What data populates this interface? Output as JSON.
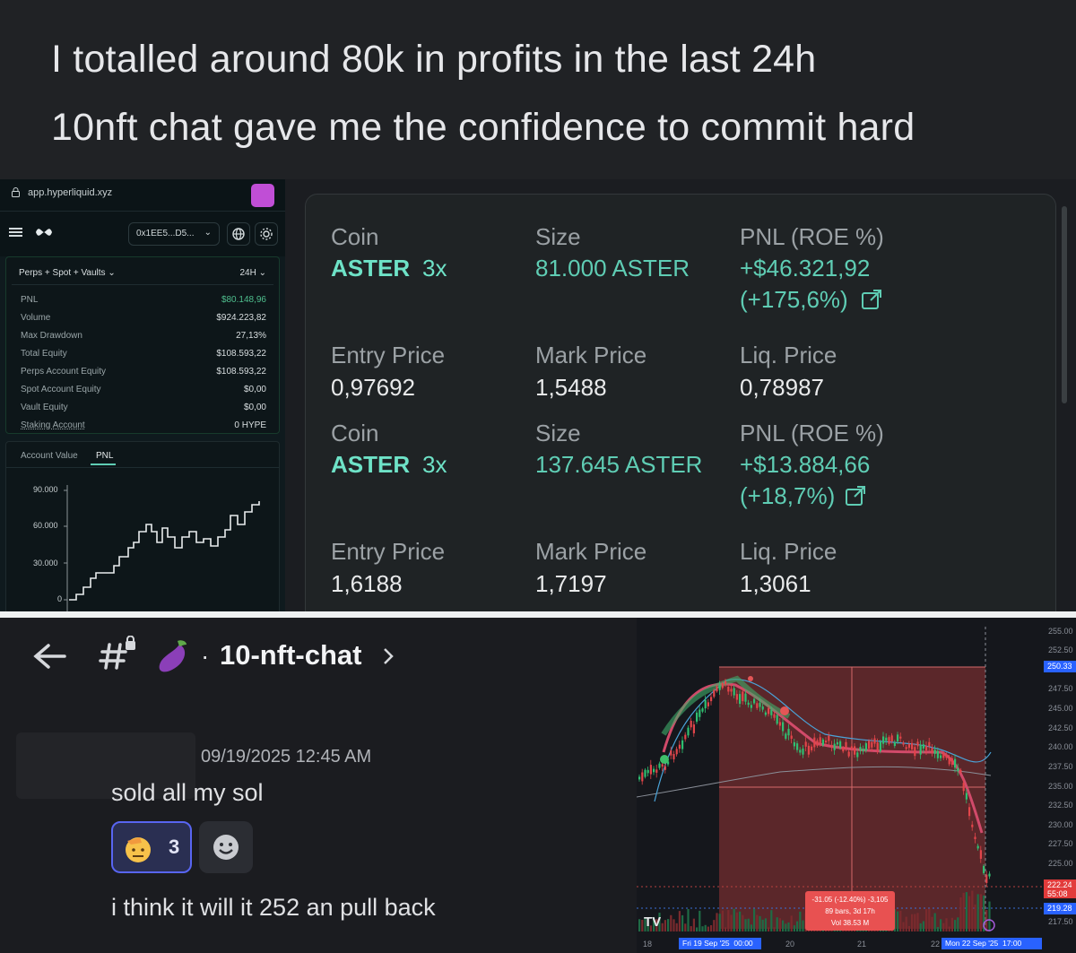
{
  "caption": {
    "line1": "I totalled around 80k in profits in the last 24h",
    "line2": "10nft chat gave me the confidence to commit hard"
  },
  "hyperliquid": {
    "url": "app.hyperliquid.xyz",
    "address": "0x1EE5...D5...",
    "filter": "Perps + Spot + Vaults",
    "range": "24H",
    "stats": [
      {
        "label": "PNL",
        "value": "$80.148,96"
      },
      {
        "label": "Volume",
        "value": "$924.223,82"
      },
      {
        "label": "Max Drawdown",
        "value": "27,13%"
      },
      {
        "label": "Total Equity",
        "value": "$108.593,22"
      },
      {
        "label": "Perps Account Equity",
        "value": "$108.593,22"
      },
      {
        "label": "Spot Account Equity",
        "value": "$0,00"
      },
      {
        "label": "Vault Equity",
        "value": "$0,00"
      },
      {
        "label": "Staking Account",
        "value": "0 HYPE"
      }
    ],
    "tabs": [
      "Account Value",
      "PNL"
    ],
    "active_tab": "PNL",
    "y_ticks": [
      "90.000",
      "60.000",
      "30.000",
      "0"
    ],
    "pnl_color": "#4fbf8e"
  },
  "positions": {
    "labels": {
      "coin": "Coin",
      "size": "Size",
      "pnl": "PNL (ROE %)",
      "entry": "Entry Price",
      "mark": "Mark Price",
      "liq": "Liq. Price"
    },
    "items": [
      {
        "coin": "ASTER",
        "leverage": "3x",
        "size": "81.000 ASTER",
        "pnl": "+$46.321,92",
        "roe": "(+175,6%)",
        "entry": "0,97692",
        "mark": "1,5488",
        "liq": "0,78987"
      },
      {
        "coin": "ASTER",
        "leverage": "3x",
        "size": "137.645 ASTER",
        "pnl": "+$13.884,66",
        "roe": "(+18,7%)",
        "entry": "1,6188",
        "mark": "1,7197",
        "liq": "1,3061"
      }
    ]
  },
  "discord": {
    "channel": "10-nft-chat",
    "timestamp": "09/19/2025 12:45 AM",
    "message1": "sold all my sol",
    "reaction_count": "3",
    "message2": "i think it will it 252 an pull back"
  },
  "tradingview": {
    "y_ticks": [
      "255.00",
      "252.50",
      "250.33",
      "247.50",
      "245.00",
      "242.50",
      "240.00",
      "237.50",
      "235.00",
      "232.50",
      "230.00",
      "227.50",
      "225.00",
      "222.24",
      "219.28",
      "217.50"
    ],
    "countdown": "55:08",
    "x_labels": [
      "18",
      "20",
      "21",
      "22"
    ],
    "date_badge_left": "Fri 19 Sep '25  00:00",
    "date_badge_right": "Mon 22 Sep '25  17:00",
    "measure_line1": "-31.05 (-12.40%) -3,105",
    "measure_line2": "89 bars, 3d 17h",
    "measure_line3": "Vol 38.53 M",
    "logo": "TV"
  }
}
